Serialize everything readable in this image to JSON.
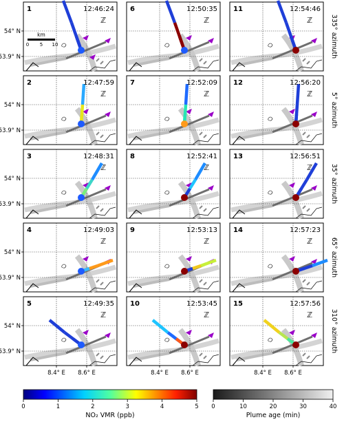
{
  "panels": [
    {
      "id": "1",
      "time": "12:46:24",
      "plume_colors": [
        "#1f3fd8",
        "#1f3fd8",
        "#1f3fd8"
      ],
      "source_color": "#1e5bff"
    },
    {
      "id": "6",
      "time": "12:50:35",
      "plume_colors": [
        "#1f3fd8",
        "#8b0000",
        "#8b0000"
      ],
      "source_color": "#1e5bff"
    },
    {
      "id": "11",
      "time": "12:54:46",
      "plume_colors": [
        "#1f3fd8",
        "#1f3fd8",
        "#1f3fd8"
      ],
      "source_color": "#8b0000"
    },
    {
      "id": "2",
      "time": "12:47:59",
      "plume_colors": [
        "#2aa9ff",
        "#e6e61e",
        "#e6e61e"
      ],
      "source_color": "#1e5bff"
    },
    {
      "id": "7",
      "time": "12:52:09",
      "plume_colors": [
        "#1f6bff",
        "#29e6b4",
        "#29e6b4"
      ],
      "source_color": "#ff9a1a"
    },
    {
      "id": "12",
      "time": "12:56:20",
      "plume_colors": [
        "#1f3fd8",
        "#1f3fd8",
        "#1f3fd8"
      ],
      "source_color": "#8b0000"
    },
    {
      "id": "3",
      "time": "12:48:31",
      "plume_colors": [
        "#1e8cff",
        "#3ed6c8",
        "#7af07a"
      ],
      "source_color": "#1e5bff"
    },
    {
      "id": "8",
      "time": "12:52:41",
      "plume_colors": [
        "#1e8cff",
        "#1ec4ff",
        "#1f3fd8"
      ],
      "source_color": "#8b0000"
    },
    {
      "id": "13",
      "time": "12:56:51",
      "plume_colors": [
        "#1f3fd8",
        "#1f3fd8",
        "#1f3fd8"
      ],
      "source_color": "#8b0000"
    },
    {
      "id": "4",
      "time": "12:49:03",
      "plume_colors": [
        "#ff9a1a",
        "#ff9a1a",
        "#38b8ff"
      ],
      "source_color": "#1e5bff"
    },
    {
      "id": "9",
      "time": "12:53:13",
      "plume_colors": [
        "#c8f03a",
        "#f0c81e",
        "#1f3fd8"
      ],
      "source_color": "#8b0000"
    },
    {
      "id": "14",
      "time": "12:57:23",
      "plume_colors": [
        "#1e8cff",
        "#1f3fd8",
        "#1f3fd8"
      ],
      "source_color": "#8b0000"
    },
    {
      "id": "5",
      "time": "12:49:35",
      "plume_colors": [
        "#1f3fd8",
        "#1f3fd8",
        "#1f3fd8"
      ],
      "source_color": "#1e5bff"
    },
    {
      "id": "10",
      "time": "12:53:45",
      "plume_colors": [
        "#1ec4ff",
        "#1f6bff",
        "#ff5a1a"
      ],
      "source_color": "#8b0000"
    },
    {
      "id": "15",
      "time": "12:57:56",
      "plume_colors": [
        "#f0d21e",
        "#b8e650",
        "#48e6a0"
      ],
      "source_color": "#8b0000"
    }
  ],
  "row_labels": [
    "335° azimuth",
    "5° azimuth",
    "35° azimuth",
    "65° azimuth",
    "310° azimuth"
  ],
  "y_axis": {
    "ticks": [
      "54° N",
      "53.9° N"
    ]
  },
  "x_axis": {
    "ticks": [
      "8.4° E",
      "8.6° E"
    ]
  },
  "scalebar": {
    "unit": "km",
    "ticks": [
      "0",
      "5",
      "10"
    ]
  },
  "colorbars": [
    {
      "label": "NO₂ VMR (ppb)",
      "ticks": [
        "0",
        "1",
        "2",
        "3",
        "4",
        "5"
      ],
      "colormap": "jet"
    },
    {
      "label": "Plume age (min)",
      "ticks": [
        "0",
        "10",
        "20",
        "30",
        "40"
      ],
      "colormap": "gray"
    }
  ]
}
